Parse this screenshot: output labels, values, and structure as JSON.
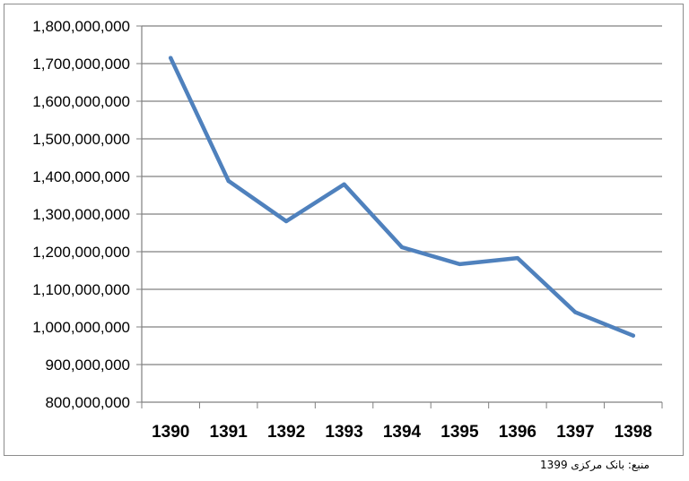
{
  "source_note": "منبع: بانک مرکزی 1399",
  "colors": {
    "line": "#4f81bd",
    "grid": "#808080",
    "axis": "#808080"
  },
  "chart_data": {
    "type": "line",
    "title": "",
    "xlabel": "",
    "ylabel": "",
    "categories": [
      "1390",
      "1391",
      "1392",
      "1393",
      "1394",
      "1395",
      "1396",
      "1397",
      "1398"
    ],
    "ylim": [
      800000000,
      1800000000
    ],
    "yticks": [
      {
        "value": 800000000,
        "label": "800,000,000"
      },
      {
        "value": 900000000,
        "label": "900,000,000"
      },
      {
        "value": 1000000000,
        "label": "1,000,000,000"
      },
      {
        "value": 1100000000,
        "label": "1,100,000,000"
      },
      {
        "value": 1200000000,
        "label": "1,200,000,000"
      },
      {
        "value": 1300000000,
        "label": "1,300,000,000"
      },
      {
        "value": 1400000000,
        "label": "1,400,000,000"
      },
      {
        "value": 1500000000,
        "label": "1,500,000,000"
      },
      {
        "value": 1600000000,
        "label": "1,600,000,000"
      },
      {
        "value": 1700000000,
        "label": "1,700,000,000"
      },
      {
        "value": 1800000000,
        "label": "1,800,000,000"
      }
    ],
    "grid": true,
    "legend": "none",
    "series": [
      {
        "values": [
          1715000000,
          1388000000,
          1281000000,
          1379000000,
          1212000000,
          1167000000,
          1183000000,
          1039000000,
          977000000
        ]
      }
    ]
  }
}
